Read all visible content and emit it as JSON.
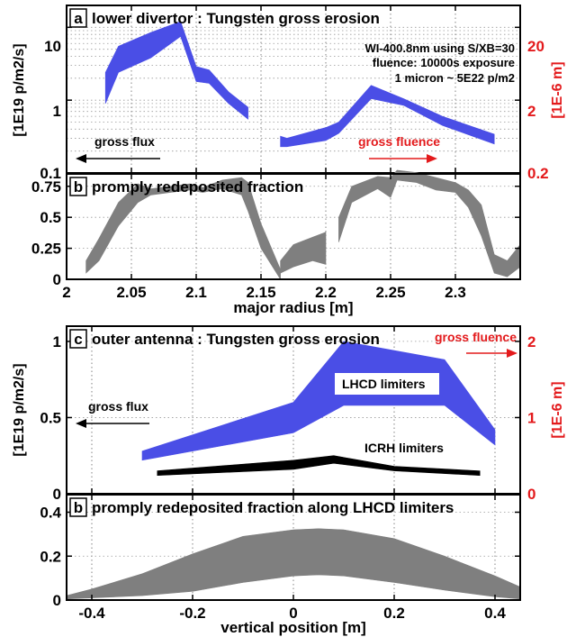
{
  "colors": {
    "blue": "#4a4ee6",
    "gray": "#7f7f7f",
    "black": "#000000",
    "red": "#e31a1c"
  },
  "panel_a": {
    "letter": "a",
    "title": "lower divertor : Tungsten gross erosion",
    "ylabel_left": "[1E19 p/m2/s]",
    "ylabel_right": "[1E-6 m]",
    "ann1": "WI-400.8nm using S/XB=30",
    "ann2": "fluence: 10000s exposure",
    "ann3": "1 micron ~ 5E22 p/m2",
    "flux_label": "gross flux",
    "fluence_label": "gross fluence"
  },
  "panel_b1": {
    "letter": "b",
    "title": "promply redeposited fraction",
    "xlabel": "major radius [m]"
  },
  "panel_c": {
    "letter": "c",
    "title": "outer antenna : Tungsten gross erosion",
    "ylabel_left": "[1E19 p/m2/s]",
    "ylabel_right": "[1E-6 m]",
    "fluence_label": "gross fluence",
    "flux_label": "gross flux",
    "lhcd_label": "LHCD limiters",
    "icrh_label": "ICRH limiters"
  },
  "panel_b2": {
    "letter": "b",
    "title": "promply redeposited fraction along LHCD limiters",
    "xlabel": "vertical position [m]"
  },
  "chart_data": [
    {
      "id": "a",
      "type": "area",
      "title": "lower divertor : Tungsten gross erosion",
      "xlabel": "",
      "ylabel": "[1E19 p/m2/s]",
      "y2label": "[1E-6 m]",
      "yscale": "log",
      "xlim": [
        2.0,
        2.35
      ],
      "ylim": [
        0.1,
        20
      ],
      "y2lim": [
        0.2,
        40
      ],
      "yticks": [
        "0.1",
        "1",
        "10"
      ],
      "y2ticks": [
        "0.2",
        "2",
        "20"
      ],
      "series": [
        {
          "x": [
            2.03,
            2.04,
            2.065,
            2.088,
            2.1,
            2.11,
            2.125,
            2.14
          ],
          "ylow": [
            0.9,
            2.4,
            3.8,
            7.5,
            1.8,
            1.7,
            0.9,
            0.55
          ],
          "yhigh": [
            2.4,
            5.5,
            8.5,
            12,
            2.9,
            2.6,
            1.3,
            0.8
          ]
        },
        {
          "x": [
            2.165,
            2.17,
            2.2,
            2.21,
            2.235,
            2.26,
            2.29,
            2.33
          ],
          "ylow": [
            0.23,
            0.23,
            0.28,
            0.35,
            1.05,
            0.85,
            0.45,
            0.25
          ],
          "yhigh": [
            0.32,
            0.3,
            0.42,
            0.5,
            1.6,
            1.05,
            0.6,
            0.34
          ]
        }
      ]
    },
    {
      "id": "b1",
      "type": "area",
      "title": "promply redeposited fraction",
      "xlabel": "major radius [m]",
      "xlim": [
        2.0,
        2.35
      ],
      "ylim": [
        0,
        0.85
      ],
      "xticks": [
        2,
        2.05,
        2.1,
        2.15,
        2.2,
        2.25,
        2.3
      ],
      "xtick_labels": [
        "2",
        "2.05",
        "2.1",
        "2.15",
        "2.2",
        "2.25",
        "2.3"
      ],
      "yticks": [
        0,
        0.25,
        0.5,
        0.75
      ],
      "ytick_labels": [
        "0",
        "0.25",
        "0.5",
        "0.75"
      ],
      "series": [
        {
          "x": [
            2.015,
            2.025,
            2.04,
            2.055,
            2.065,
            2.08,
            2.095,
            2.105,
            2.12,
            2.135,
            2.14,
            2.15,
            2.165
          ],
          "ylow": [
            0.05,
            0.15,
            0.43,
            0.62,
            0.68,
            0.7,
            0.72,
            0.7,
            0.73,
            0.68,
            0.55,
            0.25,
            0.0
          ],
          "yhigh": [
            0.15,
            0.33,
            0.62,
            0.77,
            0.73,
            0.75,
            0.77,
            0.74,
            0.8,
            0.82,
            0.78,
            0.45,
            0.08
          ]
        },
        {
          "x": [
            2.165,
            2.175,
            2.19,
            2.2
          ],
          "ylow": [
            0.05,
            0.1,
            0.15,
            0.12
          ],
          "yhigh": [
            0.15,
            0.28,
            0.34,
            0.38
          ]
        },
        {
          "x": [
            2.21,
            2.22,
            2.24,
            2.25,
            2.255,
            2.27,
            2.285,
            2.3,
            2.31,
            2.32,
            2.33,
            2.34,
            2.35
          ],
          "ylow": [
            0.3,
            0.62,
            0.73,
            0.66,
            0.8,
            0.78,
            0.72,
            0.7,
            0.58,
            0.35,
            0.05,
            0.02,
            0.1
          ],
          "yhigh": [
            0.5,
            0.75,
            0.83,
            0.82,
            0.88,
            0.86,
            0.82,
            0.78,
            0.72,
            0.6,
            0.2,
            0.15,
            0.28
          ]
        }
      ]
    },
    {
      "id": "c",
      "type": "area",
      "title": "outer antenna : Tungsten gross erosion",
      "ylabel": "[1E19 p/m2/s]",
      "y2label": "[1E-6 m]",
      "xlim": [
        -0.45,
        0.45
      ],
      "ylim": [
        0,
        1.1
      ],
      "y2lim": [
        0,
        2.2
      ],
      "yticks": [
        0,
        0.5,
        1
      ],
      "ytick_labels": [
        "0",
        "0.5",
        "1"
      ],
      "y2ticks": [
        0,
        1,
        2
      ],
      "series": [
        {
          "name": "LHCD limiters",
          "x": [
            -0.3,
            0.0,
            0.1,
            0.3,
            0.4
          ],
          "ylow": [
            0.22,
            0.4,
            0.58,
            0.58,
            0.32
          ],
          "yhigh": [
            0.28,
            0.6,
            1.0,
            0.88,
            0.42
          ]
        },
        {
          "name": "ICRH limiters",
          "x": [
            -0.27,
            0.0,
            0.08,
            0.2,
            0.37
          ],
          "ylow": [
            0.12,
            0.16,
            0.2,
            0.15,
            0.12
          ],
          "yhigh": [
            0.15,
            0.22,
            0.25,
            0.18,
            0.15
          ]
        }
      ]
    },
    {
      "id": "b2",
      "type": "area",
      "title": "promply redeposited fraction along LHCD limiters",
      "xlabel": "vertical position [m]",
      "xlim": [
        -0.45,
        0.45
      ],
      "ylim": [
        0,
        0.48
      ],
      "xticks": [
        -0.4,
        -0.2,
        0,
        0.2,
        0.4
      ],
      "xtick_labels": [
        "-0.4",
        "-0.2",
        "0",
        "0.2",
        "0.4"
      ],
      "yticks": [
        0,
        0.2,
        0.4
      ],
      "ytick_labels": [
        "0",
        "0.2",
        "0.4"
      ],
      "series": [
        {
          "x": [
            -0.45,
            -0.4,
            -0.3,
            -0.2,
            -0.1,
            0.0,
            0.05,
            0.1,
            0.2,
            0.3,
            0.4,
            0.45
          ],
          "ylow": [
            0.005,
            0.01,
            0.02,
            0.04,
            0.08,
            0.11,
            0.115,
            0.11,
            0.08,
            0.045,
            0.015,
            0.005
          ],
          "yhigh": [
            0.02,
            0.05,
            0.12,
            0.21,
            0.29,
            0.32,
            0.325,
            0.32,
            0.28,
            0.2,
            0.11,
            0.06
          ]
        }
      ]
    }
  ]
}
